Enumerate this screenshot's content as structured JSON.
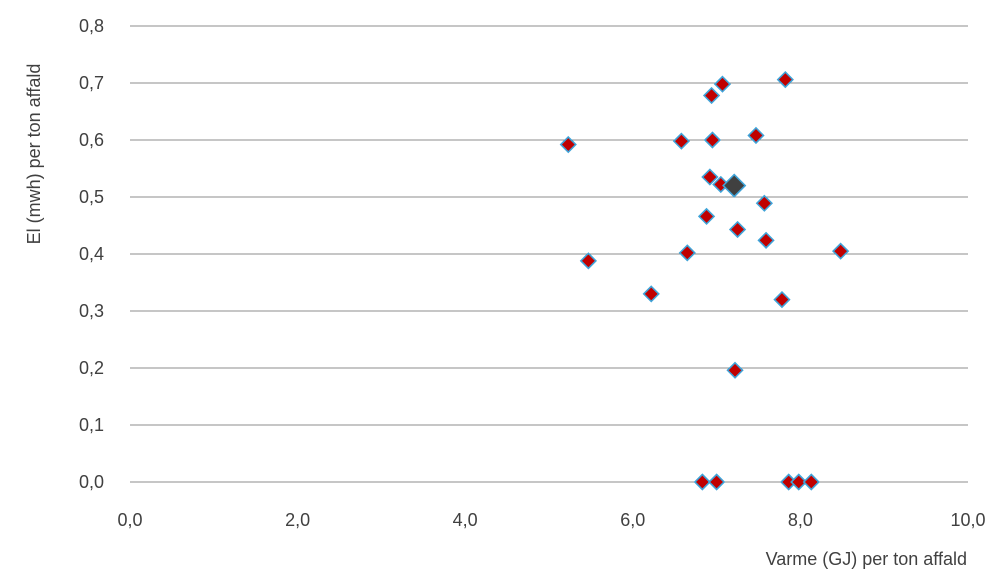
{
  "chart_data": {
    "type": "scatter",
    "title": "",
    "xlabel": "Varme (GJ) per ton affald",
    "ylabel": "El (mwh) per ton affald",
    "xlim": [
      0,
      10
    ],
    "ylim": [
      0,
      0.8
    ],
    "x_ticks": [
      "0,0",
      "2,0",
      "4,0",
      "6,0",
      "8,0",
      "10,0"
    ],
    "y_ticks": [
      "0,0",
      "0,1",
      "0,2",
      "0,3",
      "0,4",
      "0,5",
      "0,6",
      "0,7",
      "0,8"
    ],
    "grid": "horizontal",
    "legend": "none",
    "series": [
      {
        "marker": "diamond",
        "color": "#c00000",
        "edge_color": "#3fa3d8",
        "points": [
          {
            "x": 5.23,
            "y": 0.592
          },
          {
            "x": 5.47,
            "y": 0.388
          },
          {
            "x": 6.22,
            "y": 0.33
          },
          {
            "x": 6.58,
            "y": 0.598
          },
          {
            "x": 6.65,
            "y": 0.402
          },
          {
            "x": 6.83,
            "y": 0.0
          },
          {
            "x": 6.88,
            "y": 0.466
          },
          {
            "x": 6.92,
            "y": 0.535
          },
          {
            "x": 6.94,
            "y": 0.678
          },
          {
            "x": 6.95,
            "y": 0.6
          },
          {
            "x": 7.0,
            "y": 0.0
          },
          {
            "x": 7.05,
            "y": 0.522
          },
          {
            "x": 7.07,
            "y": 0.698
          },
          {
            "x": 7.22,
            "y": 0.196
          },
          {
            "x": 7.25,
            "y": 0.443
          },
          {
            "x": 7.47,
            "y": 0.608
          },
          {
            "x": 7.57,
            "y": 0.489
          },
          {
            "x": 7.59,
            "y": 0.424
          },
          {
            "x": 7.78,
            "y": 0.32
          },
          {
            "x": 7.82,
            "y": 0.706
          },
          {
            "x": 7.86,
            "y": 0.0
          },
          {
            "x": 7.98,
            "y": 0.0
          },
          {
            "x": 8.13,
            "y": 0.0
          },
          {
            "x": 8.48,
            "y": 0.405
          }
        ]
      },
      {
        "marker": "diamond-large",
        "color": "#404040",
        "edge_color": "#3fa3d8",
        "points": [
          {
            "x": 7.21,
            "y": 0.52
          }
        ]
      }
    ]
  }
}
